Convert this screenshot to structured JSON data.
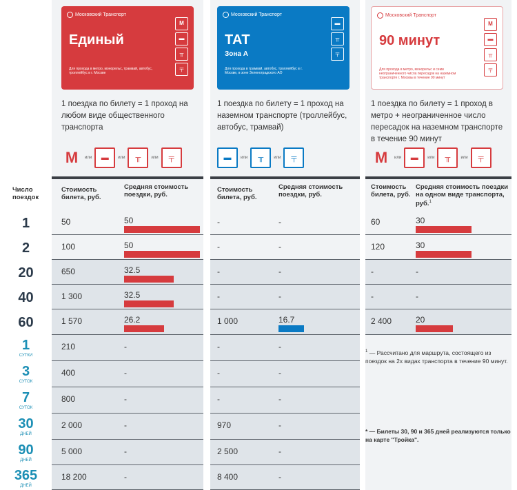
{
  "colors": {
    "red": "#d63b3e",
    "blue": "#0a7ac4",
    "card_white_border": "#e7a2a5",
    "row_shade": "#dfe4e9"
  },
  "cards": [
    {
      "brand": "Московский Транспорт",
      "title": "Единый",
      "subtitle": "",
      "small": "Для прохода в метро, монорельс, трамвай, автобус, троллейбус в г. Москве",
      "icons": [
        "metro-icon",
        "bus-icon",
        "trolleybus-icon",
        "tram-icon"
      ]
    },
    {
      "brand": "Московский Транспорт",
      "title": "ТАТ",
      "subtitle": "Зона А",
      "small": "Для прохода в трамвай, автобус, троллейбус в г. Москве, в зоне Зеленоградского АО",
      "icons": [
        "bus-icon",
        "trolleybus-icon",
        "tram-icon"
      ]
    },
    {
      "brand": "Московский Транспорт",
      "title": "90 минут",
      "subtitle": "",
      "small": "Для прохода в метро, монорельс и семи неограниченного числа пересадок на наземном транспорте г. Москвы в течение 90 минут",
      "icons": [
        "metro-icon",
        "bus-icon",
        "trolleybus-icon",
        "tram-icon"
      ]
    }
  ],
  "descriptions": [
    "1 поездка по билету = 1 проход на любом виде общественного транспорта",
    "1 поездка по билету = 1 проход на наземном транспорте (троллейбус, автобус, трамвай)",
    "1 поездка по билету = 1 проход в метро + неограниченное число пересадок на наземном транспорте в течение 90 минут"
  ],
  "mode_icon_or": "или",
  "headers": {
    "trips": "Число поездок",
    "price": "Стоимость билета, руб.",
    "avg": "Средняя стоимость поездки, руб.",
    "price90": "Стоимость билета, руб.",
    "avg90": "Средняя стоимость поездки на одном виде транспорта, руб.",
    "footnote_mark": "1"
  },
  "rows": [
    {
      "num": "1",
      "unit": "",
      "e_price": "50",
      "e_avg": "50",
      "e_bar": 50,
      "t_price": "-",
      "t_avg": "-",
      "t_bar": 0,
      "m_price": "60",
      "m_avg": "30",
      "m_bar": 30
    },
    {
      "num": "2",
      "unit": "",
      "e_price": "100",
      "e_avg": "50",
      "e_bar": 50,
      "t_price": "-",
      "t_avg": "-",
      "t_bar": 0,
      "m_price": "120",
      "m_avg": "30",
      "m_bar": 30
    },
    {
      "num": "20",
      "unit": "",
      "e_price": "650",
      "e_avg": "32.5",
      "e_bar": 32.5,
      "t_price": "-",
      "t_avg": "-",
      "t_bar": 0,
      "m_price": "-",
      "m_avg": "-",
      "m_bar": 0
    },
    {
      "num": "40",
      "unit": "",
      "e_price": "1 300",
      "e_avg": "32.5",
      "e_bar": 32.5,
      "t_price": "-",
      "t_avg": "-",
      "t_bar": 0,
      "m_price": "-",
      "m_avg": "-",
      "m_bar": 0
    },
    {
      "num": "60",
      "unit": "",
      "e_price": "1 570",
      "e_avg": "26.2",
      "e_bar": 26.2,
      "t_price": "1 000",
      "t_avg": "16.7",
      "t_bar": 16.7,
      "m_price": "2 400",
      "m_avg": "20",
      "m_bar": 20
    },
    {
      "num": "1",
      "unit": "СУТКИ",
      "e_price": "210",
      "e_avg": "-",
      "e_bar": 0,
      "t_price": "-",
      "t_avg": "-",
      "t_bar": 0,
      "m_price": "",
      "m_avg": "",
      "m_bar": 0
    },
    {
      "num": "3",
      "unit": "СУТОК",
      "e_price": "400",
      "e_avg": "-",
      "e_bar": 0,
      "t_price": "-",
      "t_avg": "-",
      "t_bar": 0,
      "m_price": "",
      "m_avg": "",
      "m_bar": 0
    },
    {
      "num": "7",
      "unit": "СУТОК",
      "e_price": "800",
      "e_avg": "-",
      "e_bar": 0,
      "t_price": "-",
      "t_avg": "-",
      "t_bar": 0,
      "m_price": "",
      "m_avg": "",
      "m_bar": 0
    },
    {
      "num": "30",
      "unit": "ДНЕЙ",
      "e_price": "2 000",
      "e_avg": "-",
      "e_bar": 0,
      "t_price": "970",
      "t_avg": "-",
      "t_bar": 0,
      "m_price": "",
      "m_avg": "",
      "m_bar": 0
    },
    {
      "num": "90",
      "unit": "ДНЕЙ",
      "e_price": "5 000",
      "e_avg": "-",
      "e_bar": 0,
      "t_price": "2 500",
      "t_avg": "-",
      "t_bar": 0,
      "m_price": "",
      "m_avg": "",
      "m_bar": 0
    },
    {
      "num": "365",
      "unit": "ДНЕЙ",
      "e_price": "18 200",
      "e_avg": "-",
      "e_bar": 0,
      "t_price": "8 400",
      "t_avg": "-",
      "t_bar": 0,
      "m_price": "",
      "m_avg": "",
      "m_bar": 0
    }
  ],
  "notes": {
    "footnote": "— Рассчитано для маршрута, состоящего из поездок на 2х видах транспорта в течение 90 минут.",
    "footnote_num": "1",
    "star": "* — Билеты 30, 90 и 365 дней реализуются только на карте \"Тройка\"."
  }
}
